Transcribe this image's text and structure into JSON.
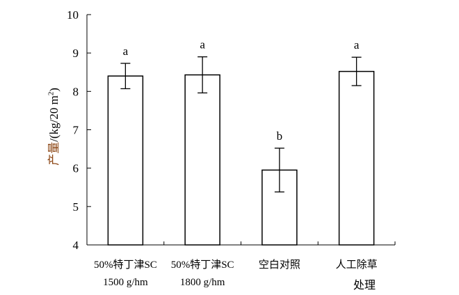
{
  "chart_data": {
    "type": "bar",
    "categories": [
      [
        "50%特丁津SC",
        "1500 g/hm"
      ],
      [
        "50%特丁津SC",
        "1800 g/hm"
      ],
      [
        "空白对照"
      ],
      [
        "人工除草"
      ]
    ],
    "values": [
      8.4,
      8.43,
      5.95,
      8.52
    ],
    "errors": [
      0.33,
      0.47,
      0.57,
      0.37
    ],
    "significance": [
      "a",
      "a",
      "b",
      "a"
    ],
    "xlabel": "处理",
    "ylabel_prefix": "产量",
    "ylabel_suffix": "/(kg/20 m",
    "ylabel_sup": "2",
    "ylabel_close": ")",
    "ylim": [
      4,
      10
    ],
    "yticks": [
      "4",
      "5",
      "6",
      "7",
      "8",
      "9",
      "10"
    ],
    "grid": false,
    "legend": "none",
    "bar_fill": "#ffffff",
    "bar_stroke": "#000000"
  }
}
